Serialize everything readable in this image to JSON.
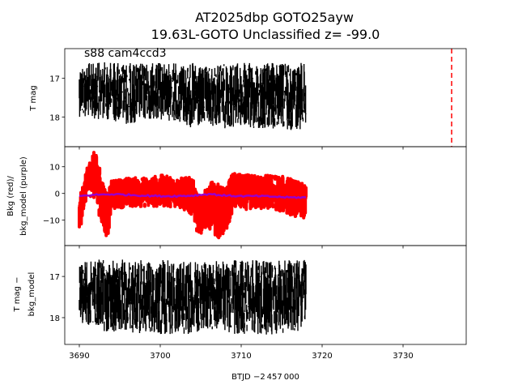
{
  "figure": {
    "title_line1": "AT2025dbp  GOTO25ayw",
    "title_line2": "19.63L-GOTO Unclassified z= -99.0",
    "annotation": "s88 cam4ccd3",
    "xlabel": "BTJD −2 457 000"
  },
  "chart_data": [
    {
      "type": "scatter",
      "panel": "top",
      "ylabel": "T mag",
      "y_inverted": true,
      "xlim": [
        3688.2,
        3737.8
      ],
      "ylim": [
        16.23,
        18.77
      ],
      "y_ticks": [
        17,
        18
      ],
      "y_tick_labels": [
        "17",
        "18"
      ],
      "series": [
        {
          "marker_color": "#000000",
          "x_range": [
            3690.0,
            3718.0
          ],
          "envelope_x": [
            3690,
            3692,
            3694,
            3696,
            3698,
            3700,
            3702,
            3704,
            3705,
            3706,
            3708,
            3710,
            3712,
            3714,
            3716,
            3718
          ],
          "envelope_y_bright": [
            16.6,
            16.6,
            16.55,
            16.6,
            16.6,
            16.6,
            16.6,
            16.6,
            16.7,
            16.7,
            16.6,
            16.6,
            16.6,
            16.6,
            16.6,
            16.6
          ],
          "envelope_y_faint": [
            18.0,
            18.05,
            18.1,
            18.2,
            18.1,
            18.1,
            18.1,
            18.35,
            18.3,
            18.25,
            18.3,
            18.3,
            18.35,
            18.35,
            18.35,
            18.3
          ]
        }
      ],
      "vline": {
        "x": 3736.0,
        "color": "#ff0000",
        "style": "dashed"
      }
    },
    {
      "type": "scatter",
      "panel": "middle",
      "ylabel_line1": "Bkg (red)/",
      "ylabel_line2": "bkg_model (purple)",
      "xlim": [
        3688.2,
        3737.8
      ],
      "ylim": [
        -19.5,
        17.5
      ],
      "y_ticks": [
        -10,
        0,
        10
      ],
      "y_tick_labels": [
        "−10",
        "0",
        "10"
      ],
      "series": [
        {
          "marker_color": "#ff0000",
          "envelope_x": [
            3690,
            3690.5,
            3691,
            3691.5,
            3692,
            3692.5,
            3693,
            3693.5,
            3694,
            3696,
            3698,
            3700,
            3702,
            3704,
            3704.5,
            3705,
            3706,
            3706.5,
            3707,
            3708,
            3709,
            3710,
            3712,
            3714,
            3716,
            3718
          ],
          "envelope_low": [
            -17,
            -6,
            -2,
            -1,
            -2,
            -9,
            -14,
            -17,
            -6,
            -5,
            -5,
            -5,
            -5,
            -8,
            -14,
            -15,
            -13,
            -15,
            -17,
            -16,
            -6,
            -6,
            -6,
            -6,
            -8,
            -10
          ],
          "envelope_high": [
            -2,
            4,
            10,
            15,
            16,
            10,
            5,
            0,
            5,
            6,
            6,
            7,
            6,
            6,
            0,
            -1,
            3,
            6,
            4,
            2,
            8,
            7,
            7,
            7,
            6,
            3
          ]
        },
        {
          "marker_color": "#9900cc",
          "x": [
            3690,
            3692,
            3694,
            3696,
            3698,
            3700,
            3702,
            3704,
            3706,
            3708,
            3710,
            3712,
            3714,
            3716,
            3718
          ],
          "y": [
            -1.0,
            -0.5,
            -0.3,
            -0.5,
            -0.8,
            -1.0,
            -1.0,
            -0.8,
            -0.2,
            -0.8,
            -1.0,
            -1.0,
            -1.2,
            -1.5,
            -1.5
          ]
        }
      ]
    },
    {
      "type": "scatter",
      "panel": "bottom",
      "ylabel_line1": "T mag −",
      "ylabel_line2": "bkg_model",
      "y_inverted": true,
      "xlim": [
        3688.2,
        3737.8
      ],
      "ylim": [
        16.25,
        18.65
      ],
      "y_ticks": [
        17,
        18
      ],
      "y_tick_labels": [
        "17",
        "18"
      ],
      "x_ticks": [
        3690,
        3700,
        3710,
        3720,
        3730
      ],
      "x_tick_labels": [
        "3690",
        "3700",
        "3710",
        "3720",
        "3730"
      ],
      "series": [
        {
          "marker_color": "#000000",
          "envelope_x": [
            3690,
            3692,
            3694,
            3696,
            3698,
            3700,
            3702,
            3704,
            3706,
            3708,
            3710,
            3712,
            3714,
            3716,
            3718
          ],
          "envelope_y_bright": [
            16.65,
            16.6,
            16.55,
            16.6,
            16.6,
            16.6,
            16.6,
            16.6,
            16.65,
            16.6,
            16.6,
            16.6,
            16.6,
            16.6,
            16.6
          ],
          "envelope_y_faint": [
            18.15,
            18.25,
            18.4,
            18.35,
            18.4,
            18.4,
            18.4,
            18.4,
            18.3,
            18.4,
            18.4,
            18.45,
            18.4,
            18.35,
            18.3
          ]
        }
      ]
    }
  ]
}
